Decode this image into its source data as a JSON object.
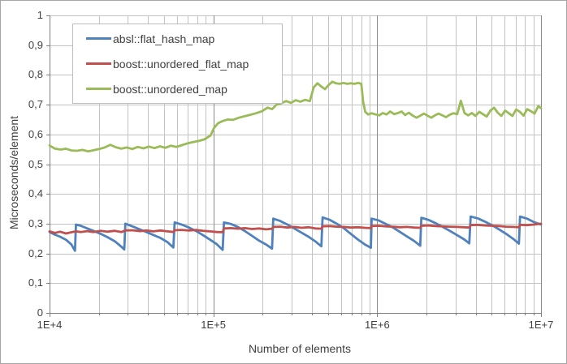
{
  "chart": {
    "background": "#FFFFFF",
    "frame_border_color": "#A6A6A6",
    "grid": {
      "minor_color": "#C3C3C3",
      "major_color": "#8A8A8A",
      "axis_color": "#808080"
    }
  },
  "chart_data": {
    "type": "line",
    "title": "",
    "x_axis": {
      "label": "Number of elements",
      "scale": "log",
      "min": 10000,
      "max": 10000000,
      "ticks": [
        {
          "value": 10000,
          "label": "1E+4"
        },
        {
          "value": 100000,
          "label": "1E+5"
        },
        {
          "value": 1000000,
          "label": "1E+6"
        },
        {
          "value": 10000000,
          "label": "1E+7"
        }
      ]
    },
    "y_axis": {
      "label": "Microseconds/element",
      "scale": "linear",
      "min": 0,
      "max": 1,
      "ticks": [
        {
          "value": 0,
          "label": "0"
        },
        {
          "value": 0.1,
          "label": "0,1"
        },
        {
          "value": 0.2,
          "label": "0,2"
        },
        {
          "value": 0.3,
          "label": "0,3"
        },
        {
          "value": 0.4,
          "label": "0,4"
        },
        {
          "value": 0.5,
          "label": "0,5"
        },
        {
          "value": 0.6,
          "label": "0,6"
        },
        {
          "value": 0.7,
          "label": "0,7"
        },
        {
          "value": 0.8,
          "label": "0,8"
        },
        {
          "value": 0.9,
          "label": "0,9"
        },
        {
          "value": 1,
          "label": "1"
        }
      ]
    },
    "legend": {
      "position": "top-left"
    },
    "series": [
      {
        "name": "absl::flat_hash_map",
        "color": "#4F81BD",
        "points": [
          [
            10000,
            0.272
          ],
          [
            10800,
            0.263
          ],
          [
            11600,
            0.256
          ],
          [
            12600,
            0.246
          ],
          [
            13600,
            0.23
          ],
          [
            14300,
            0.209
          ],
          [
            14500,
            0.297
          ],
          [
            15500,
            0.293
          ],
          [
            17000,
            0.284
          ],
          [
            18500,
            0.276
          ],
          [
            20500,
            0.266
          ],
          [
            22500,
            0.255
          ],
          [
            25000,
            0.241
          ],
          [
            27500,
            0.222
          ],
          [
            28600,
            0.213
          ],
          [
            29000,
            0.3
          ],
          [
            32000,
            0.291
          ],
          [
            35500,
            0.281
          ],
          [
            39000,
            0.272
          ],
          [
            43000,
            0.262
          ],
          [
            47500,
            0.252
          ],
          [
            52500,
            0.238
          ],
          [
            57000,
            0.22
          ],
          [
            58000,
            0.304
          ],
          [
            64000,
            0.297
          ],
          [
            71000,
            0.287
          ],
          [
            78000,
            0.276
          ],
          [
            86000,
            0.262
          ],
          [
            95000,
            0.247
          ],
          [
            105000,
            0.231
          ],
          [
            114000,
            0.212
          ],
          [
            116000,
            0.304
          ],
          [
            128000,
            0.299
          ],
          [
            141000,
            0.289
          ],
          [
            156000,
            0.275
          ],
          [
            172000,
            0.259
          ],
          [
            190000,
            0.243
          ],
          [
            210000,
            0.23
          ],
          [
            228000,
            0.216
          ],
          [
            232000,
            0.317
          ],
          [
            256000,
            0.309
          ],
          [
            283000,
            0.297
          ],
          [
            312000,
            0.284
          ],
          [
            345000,
            0.27
          ],
          [
            381000,
            0.256
          ],
          [
            420000,
            0.24
          ],
          [
            456000,
            0.224
          ],
          [
            464000,
            0.321
          ],
          [
            512000,
            0.313
          ],
          [
            566000,
            0.3
          ],
          [
            625000,
            0.285
          ],
          [
            690000,
            0.266
          ],
          [
            762000,
            0.247
          ],
          [
            842000,
            0.23
          ],
          [
            915000,
            0.219
          ],
          [
            925000,
            0.317
          ],
          [
            1020000,
            0.311
          ],
          [
            1130000,
            0.299
          ],
          [
            1250000,
            0.287
          ],
          [
            1380000,
            0.272
          ],
          [
            1520000,
            0.257
          ],
          [
            1680000,
            0.242
          ],
          [
            1830000,
            0.226
          ],
          [
            1860000,
            0.32
          ],
          [
            2050000,
            0.313
          ],
          [
            2270000,
            0.302
          ],
          [
            2500000,
            0.29
          ],
          [
            2770000,
            0.276
          ],
          [
            3060000,
            0.262
          ],
          [
            3380000,
            0.248
          ],
          [
            3650000,
            0.234
          ],
          [
            3720000,
            0.324
          ],
          [
            4110000,
            0.318
          ],
          [
            4540000,
            0.307
          ],
          [
            5010000,
            0.295
          ],
          [
            5540000,
            0.281
          ],
          [
            6120000,
            0.266
          ],
          [
            6760000,
            0.249
          ],
          [
            7330000,
            0.233
          ],
          [
            7450000,
            0.324
          ],
          [
            8230000,
            0.317
          ],
          [
            9090000,
            0.305
          ],
          [
            10000000,
            0.297
          ]
        ]
      },
      {
        "name": "boost::unordered_flat_map",
        "color": "#C0504D",
        "points": [
          [
            10000,
            0.274
          ],
          [
            10800,
            0.269
          ],
          [
            11600,
            0.273
          ],
          [
            12600,
            0.267
          ],
          [
            13600,
            0.271
          ],
          [
            14500,
            0.274
          ],
          [
            15500,
            0.272
          ],
          [
            17000,
            0.275
          ],
          [
            18500,
            0.272
          ],
          [
            20500,
            0.276
          ],
          [
            22500,
            0.273
          ],
          [
            25000,
            0.276
          ],
          [
            27500,
            0.272
          ],
          [
            29000,
            0.277
          ],
          [
            32000,
            0.278
          ],
          [
            35500,
            0.275
          ],
          [
            39000,
            0.277
          ],
          [
            43000,
            0.274
          ],
          [
            47500,
            0.277
          ],
          [
            52500,
            0.274
          ],
          [
            57000,
            0.272
          ],
          [
            58000,
            0.278
          ],
          [
            64000,
            0.279
          ],
          [
            71000,
            0.277
          ],
          [
            78000,
            0.279
          ],
          [
            86000,
            0.276
          ],
          [
            95000,
            0.274
          ],
          [
            105000,
            0.272
          ],
          [
            114000,
            0.271
          ],
          [
            116000,
            0.284
          ],
          [
            128000,
            0.285
          ],
          [
            141000,
            0.283
          ],
          [
            156000,
            0.285
          ],
          [
            172000,
            0.282
          ],
          [
            190000,
            0.284
          ],
          [
            210000,
            0.281
          ],
          [
            228000,
            0.283
          ],
          [
            232000,
            0.289
          ],
          [
            256000,
            0.29
          ],
          [
            283000,
            0.287
          ],
          [
            312000,
            0.289
          ],
          [
            345000,
            0.286
          ],
          [
            381000,
            0.288
          ],
          [
            420000,
            0.284
          ],
          [
            456000,
            0.283
          ],
          [
            464000,
            0.291
          ],
          [
            512000,
            0.292
          ],
          [
            566000,
            0.29
          ],
          [
            625000,
            0.289
          ],
          [
            690000,
            0.287
          ],
          [
            762000,
            0.288
          ],
          [
            842000,
            0.286
          ],
          [
            915000,
            0.285
          ],
          [
            925000,
            0.292
          ],
          [
            1020000,
            0.293
          ],
          [
            1130000,
            0.291
          ],
          [
            1250000,
            0.29
          ],
          [
            1380000,
            0.288
          ],
          [
            1520000,
            0.289
          ],
          [
            1680000,
            0.287
          ],
          [
            1830000,
            0.286
          ],
          [
            1860000,
            0.293
          ],
          [
            2050000,
            0.294
          ],
          [
            2270000,
            0.292
          ],
          [
            2500000,
            0.291
          ],
          [
            2770000,
            0.29
          ],
          [
            3060000,
            0.289
          ],
          [
            3380000,
            0.288
          ],
          [
            3650000,
            0.287
          ],
          [
            3720000,
            0.295
          ],
          [
            4110000,
            0.296
          ],
          [
            4540000,
            0.294
          ],
          [
            5010000,
            0.293
          ],
          [
            5540000,
            0.292
          ],
          [
            6120000,
            0.29
          ],
          [
            6760000,
            0.289
          ],
          [
            7330000,
            0.288
          ],
          [
            7450000,
            0.296
          ],
          [
            8230000,
            0.295
          ],
          [
            9090000,
            0.297
          ],
          [
            10000000,
            0.3
          ]
        ]
      },
      {
        "name": "boost::unordered_map",
        "color": "#9BBB59",
        "points": [
          [
            10000,
            0.563
          ],
          [
            10800,
            0.552
          ],
          [
            11700,
            0.549
          ],
          [
            12600,
            0.552
          ],
          [
            13600,
            0.546
          ],
          [
            14700,
            0.545
          ],
          [
            15900,
            0.548
          ],
          [
            17200,
            0.543
          ],
          [
            18600,
            0.547
          ],
          [
            20100,
            0.551
          ],
          [
            21700,
            0.556
          ],
          [
            23500,
            0.565
          ],
          [
            25400,
            0.557
          ],
          [
            27400,
            0.552
          ],
          [
            29600,
            0.556
          ],
          [
            32000,
            0.551
          ],
          [
            34600,
            0.558
          ],
          [
            37400,
            0.553
          ],
          [
            40400,
            0.559
          ],
          [
            43700,
            0.554
          ],
          [
            47200,
            0.56
          ],
          [
            51000,
            0.555
          ],
          [
            55100,
            0.562
          ],
          [
            59600,
            0.558
          ],
          [
            64400,
            0.564
          ],
          [
            69600,
            0.57
          ],
          [
            75200,
            0.574
          ],
          [
            81300,
            0.578
          ],
          [
            87800,
            0.583
          ],
          [
            92000,
            0.59
          ],
          [
            96000,
            0.596
          ],
          [
            101000,
            0.622
          ],
          [
            107000,
            0.638
          ],
          [
            114000,
            0.645
          ],
          [
            122000,
            0.65
          ],
          [
            132000,
            0.649
          ],
          [
            143000,
            0.656
          ],
          [
            155000,
            0.661
          ],
          [
            168000,
            0.666
          ],
          [
            182000,
            0.671
          ],
          [
            198000,
            0.678
          ],
          [
            214000,
            0.69
          ],
          [
            228000,
            0.685
          ],
          [
            243000,
            0.7
          ],
          [
            260000,
            0.705
          ],
          [
            278000,
            0.712
          ],
          [
            298000,
            0.706
          ],
          [
            318000,
            0.715
          ],
          [
            340000,
            0.71
          ],
          [
            363000,
            0.716
          ],
          [
            388000,
            0.712
          ],
          [
            410000,
            0.758
          ],
          [
            432000,
            0.772
          ],
          [
            455000,
            0.761
          ],
          [
            480000,
            0.752
          ],
          [
            505000,
            0.766
          ],
          [
            532000,
            0.777
          ],
          [
            560000,
            0.772
          ],
          [
            590000,
            0.77
          ],
          [
            622000,
            0.773
          ],
          [
            655000,
            0.77
          ],
          [
            690000,
            0.772
          ],
          [
            727000,
            0.77
          ],
          [
            766000,
            0.773
          ],
          [
            800000,
            0.77
          ],
          [
            820000,
            0.71
          ],
          [
            845000,
            0.676
          ],
          [
            880000,
            0.667
          ],
          [
            927000,
            0.671
          ],
          [
            977000,
            0.667
          ],
          [
            1030000,
            0.664
          ],
          [
            1080000,
            0.672
          ],
          [
            1140000,
            0.667
          ],
          [
            1200000,
            0.677
          ],
          [
            1270000,
            0.668
          ],
          [
            1340000,
            0.672
          ],
          [
            1410000,
            0.677
          ],
          [
            1480000,
            0.665
          ],
          [
            1560000,
            0.673
          ],
          [
            1650000,
            0.663
          ],
          [
            1740000,
            0.656
          ],
          [
            1830000,
            0.663
          ],
          [
            1930000,
            0.67
          ],
          [
            2030000,
            0.663
          ],
          [
            2140000,
            0.656
          ],
          [
            2250000,
            0.664
          ],
          [
            2370000,
            0.67
          ],
          [
            2500000,
            0.664
          ],
          [
            2630000,
            0.658
          ],
          [
            2770000,
            0.666
          ],
          [
            2920000,
            0.671
          ],
          [
            3080000,
            0.668
          ],
          [
            3240000,
            0.713
          ],
          [
            3410000,
            0.672
          ],
          [
            3590000,
            0.664
          ],
          [
            3780000,
            0.672
          ],
          [
            3980000,
            0.662
          ],
          [
            4200000,
            0.676
          ],
          [
            4420000,
            0.668
          ],
          [
            4660000,
            0.66
          ],
          [
            4910000,
            0.68
          ],
          [
            5170000,
            0.69
          ],
          [
            5440000,
            0.673
          ],
          [
            5730000,
            0.662
          ],
          [
            6040000,
            0.68
          ],
          [
            6360000,
            0.671
          ],
          [
            6700000,
            0.662
          ],
          [
            7050000,
            0.684
          ],
          [
            7430000,
            0.676
          ],
          [
            7820000,
            0.663
          ],
          [
            8240000,
            0.685
          ],
          [
            8680000,
            0.678
          ],
          [
            9140000,
            0.67
          ],
          [
            9620000,
            0.695
          ],
          [
            10000000,
            0.688
          ]
        ]
      }
    ]
  }
}
